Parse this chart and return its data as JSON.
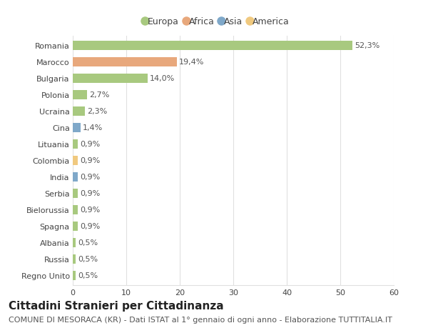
{
  "categories": [
    "Romania",
    "Marocco",
    "Bulgaria",
    "Polonia",
    "Ucraina",
    "Cina",
    "Lituania",
    "Colombia",
    "India",
    "Serbia",
    "Bielorussia",
    "Spagna",
    "Albania",
    "Russia",
    "Regno Unito"
  ],
  "values": [
    52.3,
    19.4,
    14.0,
    2.7,
    2.3,
    1.4,
    0.9,
    0.9,
    0.9,
    0.9,
    0.9,
    0.9,
    0.5,
    0.5,
    0.5
  ],
  "labels": [
    "52,3%",
    "19,4%",
    "14,0%",
    "2,7%",
    "2,3%",
    "1,4%",
    "0,9%",
    "0,9%",
    "0,9%",
    "0,9%",
    "0,9%",
    "0,9%",
    "0,5%",
    "0,5%",
    "0,5%"
  ],
  "colors": [
    "#a8c97f",
    "#e8a87c",
    "#a8c97f",
    "#a8c97f",
    "#a8c97f",
    "#7fa8c9",
    "#a8c97f",
    "#f0c97f",
    "#7fa8c9",
    "#a8c97f",
    "#a8c97f",
    "#a8c97f",
    "#a8c97f",
    "#a8c97f",
    "#a8c97f"
  ],
  "legend": [
    {
      "label": "Europa",
      "color": "#a8c97f"
    },
    {
      "label": "Africa",
      "color": "#e8a87c"
    },
    {
      "label": "Asia",
      "color": "#7fa8c9"
    },
    {
      "label": "America",
      "color": "#f0c97f"
    }
  ],
  "xlim": [
    0,
    60
  ],
  "xticks": [
    0,
    10,
    20,
    30,
    40,
    50,
    60
  ],
  "title": "Cittadini Stranieri per Cittadinanza",
  "subtitle": "COMUNE DI MESORACA (KR) - Dati ISTAT al 1° gennaio di ogni anno - Elaborazione TUTTITALIA.IT",
  "bg_color": "#ffffff",
  "grid_color": "#e0e0e0",
  "bar_height": 0.6,
  "title_fontsize": 11,
  "subtitle_fontsize": 8,
  "label_fontsize": 8,
  "tick_fontsize": 8,
  "legend_fontsize": 9
}
